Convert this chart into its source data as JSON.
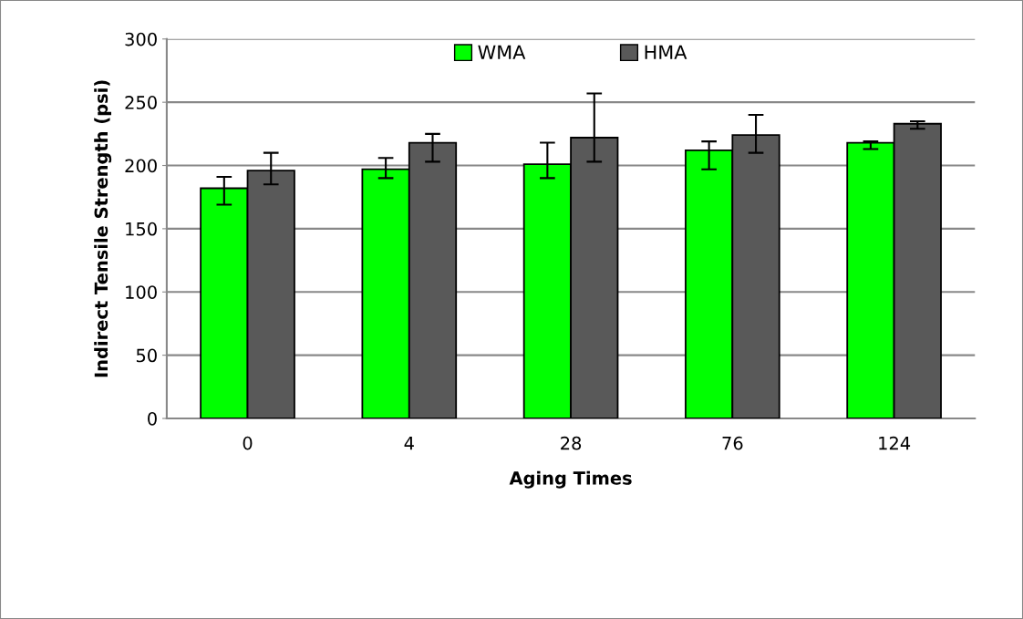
{
  "chart_data": {
    "type": "bar",
    "xlabel": "Aging Times",
    "ylabel": "Indirect Tensile Strength (psi)",
    "categories": [
      "0",
      "4",
      "28",
      "76",
      "124"
    ],
    "series": [
      {
        "name": "WMA",
        "color": "#00ff00",
        "values": [
          182,
          197,
          201,
          212,
          218
        ],
        "errors": [
          [
            169,
            191
          ],
          [
            190,
            206
          ],
          [
            190,
            218
          ],
          [
            197,
            219
          ],
          [
            213,
            219
          ]
        ]
      },
      {
        "name": "HMA",
        "color": "#595959",
        "values": [
          196,
          218,
          222,
          224,
          233
        ],
        "errors": [
          [
            185,
            210
          ],
          [
            203,
            225
          ],
          [
            203,
            257
          ],
          [
            210,
            240
          ],
          [
            229,
            235
          ]
        ]
      }
    ],
    "ylim": [
      0,
      300
    ],
    "yticks": [
      0,
      50,
      100,
      150,
      200,
      250,
      300
    ],
    "grid": "y",
    "legend": "top"
  }
}
